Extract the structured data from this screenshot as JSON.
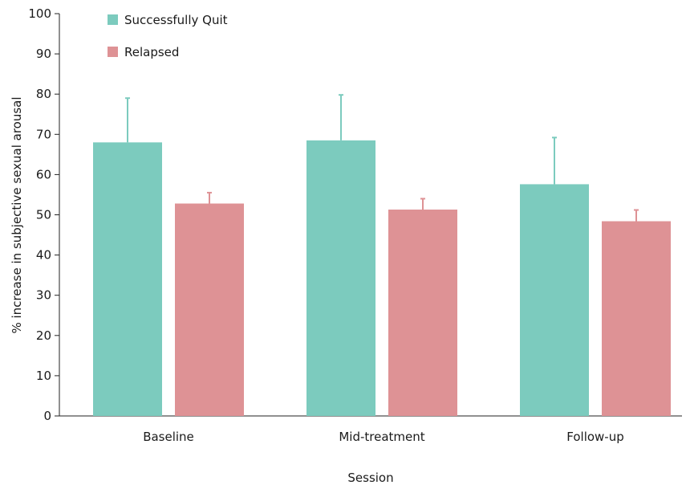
{
  "chart_data": {
    "type": "bar",
    "title": "",
    "xlabel": "Session",
    "ylabel": "% increase in subjective sexual arousal",
    "ylim": [
      0,
      100
    ],
    "yticks": [
      0,
      10,
      20,
      30,
      40,
      50,
      60,
      70,
      80,
      90,
      100
    ],
    "categories": [
      "Baseline",
      "Mid-treatment",
      "Follow-up"
    ],
    "series": [
      {
        "name": "Successfully Quit",
        "color": "#7ccbbe",
        "values": [
          68,
          68.5,
          57.6
        ],
        "error_upper": [
          79,
          79.8,
          69.2
        ]
      },
      {
        "name": "Relapsed",
        "color": "#de9295",
        "values": [
          52.8,
          51.3,
          48.4
        ],
        "error_upper": [
          55.5,
          54,
          51.2
        ]
      }
    ],
    "grid": false,
    "legend_position": "top-left"
  }
}
